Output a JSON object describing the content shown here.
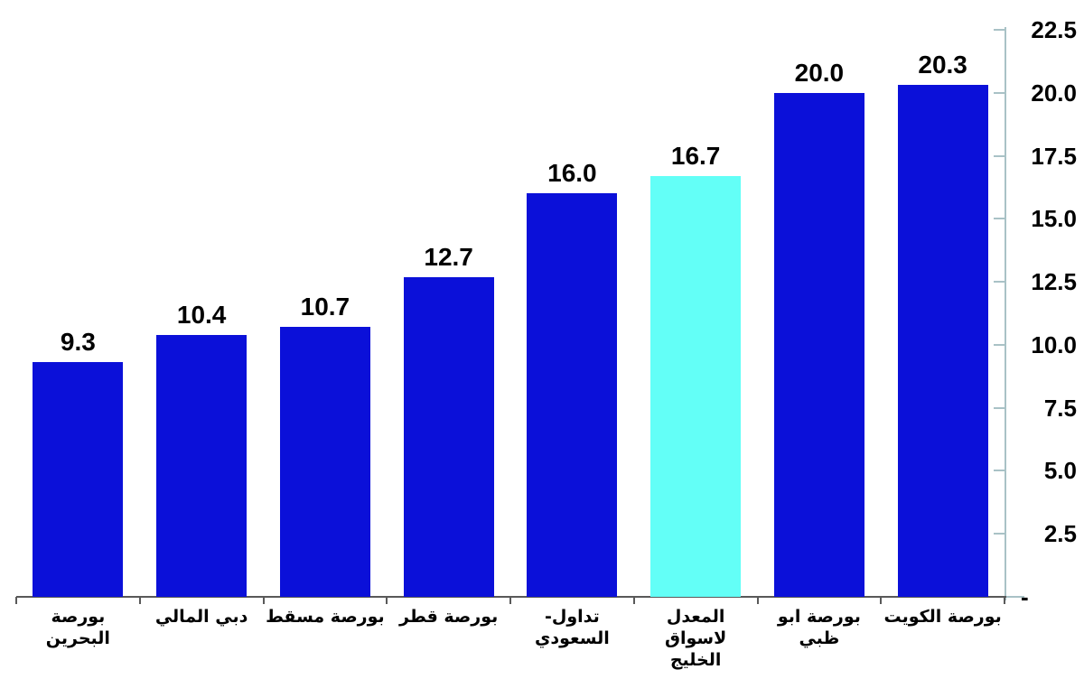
{
  "chart_data": {
    "type": "bar",
    "title": "",
    "orientation": "vertical",
    "categories": [
      "بورصة البحرين",
      "دبي المالي",
      "بورصة مسقط",
      "بورصة قطر",
      "تداول- السعودي",
      "المعدل لاسواق\nالخليج",
      "بورصة ابو ظبي",
      "بورصة الكويت"
    ],
    "values": [
      9.3,
      10.4,
      10.7,
      12.7,
      16.0,
      16.7,
      20.0,
      20.3
    ],
    "value_labels": [
      "9.3",
      "10.4",
      "10.7",
      "12.7",
      "16.0",
      "16.7",
      "20.0",
      "20.3"
    ],
    "highlight_index": 5,
    "xlabel": "",
    "ylabel": "",
    "ylim": [
      0,
      22.5
    ],
    "y_ticks": {
      "position": "right",
      "values": [
        0,
        2.5,
        5,
        7.5,
        10,
        12.5,
        15,
        17.5,
        20,
        22.5
      ],
      "labels": [
        "-",
        "2.5",
        "5.0",
        "7.5",
        "10.0",
        "12.5",
        "15.0",
        "17.5",
        "20.0",
        "22.5"
      ]
    },
    "grid": false,
    "legend": null,
    "colors": {
      "bar": "#0b10d9",
      "highlight_bar": "#63fff7",
      "value_axis": "#a9c2c6",
      "category_axis": "#595959",
      "text": "#000000",
      "background": "#ffffff"
    }
  }
}
